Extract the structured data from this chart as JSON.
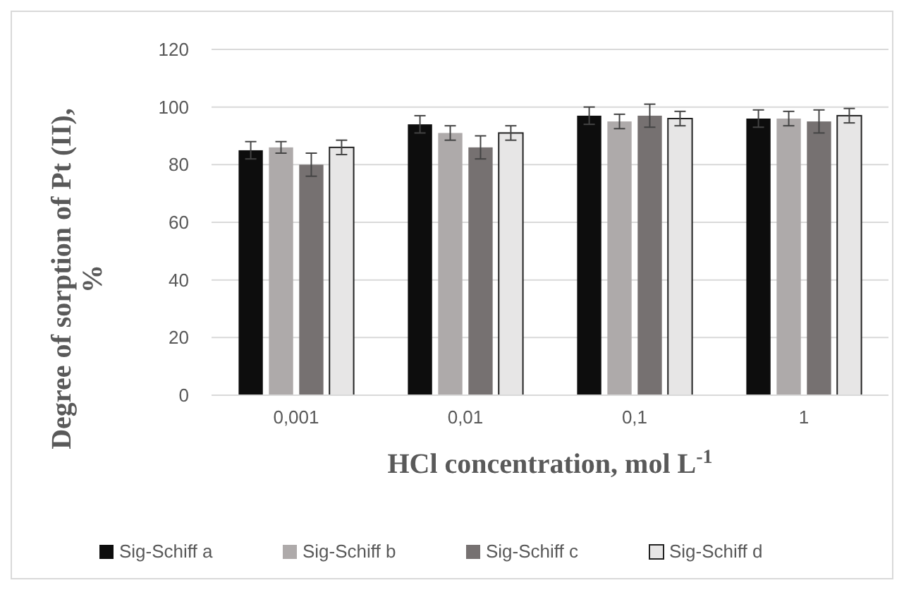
{
  "chart_data": {
    "type": "bar",
    "xlabel": "HCl concentration, mol L$^{-1}$",
    "ylabel": "Degree of sorption of Pt (II), %",
    "categories": [
      "0,001",
      "0,01",
      "0,1",
      "1"
    ],
    "series": [
      {
        "name": "Sig-Schiff a",
        "color": "#0d0d0d",
        "values": [
          85,
          94,
          97,
          96
        ],
        "errors": [
          3,
          3,
          3,
          3
        ]
      },
      {
        "name": "Sig-Schiff b",
        "color": "#aeaaaa",
        "values": [
          86,
          91,
          95,
          96
        ],
        "errors": [
          2,
          2.5,
          2.5,
          2.5
        ]
      },
      {
        "name": "Sig-Schiff c",
        "color": "#767171",
        "values": [
          80,
          86,
          97,
          95
        ],
        "errors": [
          4,
          4,
          4,
          4
        ]
      },
      {
        "name": "Sig-Schiff d",
        "color": "#e7e6e6",
        "values": [
          86,
          91,
          96,
          97
        ],
        "errors": [
          2.5,
          2.5,
          2.5,
          2.5
        ]
      }
    ],
    "ylim": [
      0,
      120
    ],
    "yticks": [
      0,
      20,
      40,
      60,
      80,
      100,
      120
    ],
    "grid": "y",
    "legend": "bottom"
  }
}
